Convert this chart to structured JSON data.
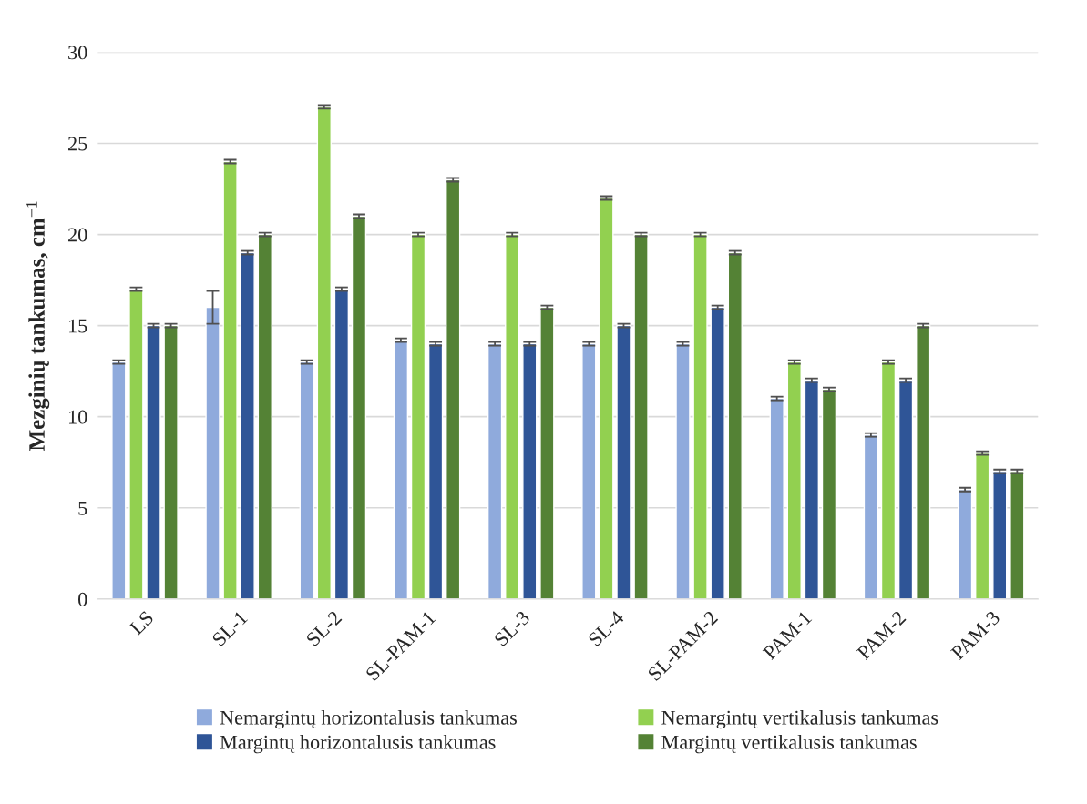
{
  "chart_data": {
    "type": "bar",
    "ylabel": "Mezginių tankumas, cm$^{−1}$",
    "categories": [
      "LS",
      "SL-1",
      "SL-2",
      "SL-PAM-1",
      "SL-3",
      "SL-4",
      "SL-PAM-2",
      "PAM-1",
      "PAM-2",
      "PAM-3"
    ],
    "series": [
      {
        "name": "Nemargintų horizontalusis tankumas",
        "color": "#8faadc",
        "values": [
          13,
          16,
          13,
          14.2,
          14,
          14,
          14,
          11,
          9,
          6
        ],
        "errors": [
          0.1,
          0.9,
          0.1,
          0.1,
          0.1,
          0.1,
          0.1,
          0.1,
          0.1,
          0.1
        ]
      },
      {
        "name": "Nemargintų vertikalusis tankumas",
        "color": "#92d050",
        "values": [
          17,
          24,
          27,
          20,
          20,
          22,
          20,
          13,
          13,
          8
        ],
        "errors": [
          0.1,
          0.1,
          0.1,
          0.1,
          0.1,
          0.1,
          0.1,
          0.1,
          0.1,
          0.1
        ]
      },
      {
        "name": "Margintų horizontalusis tankumas",
        "color": "#2f5597",
        "values": [
          15,
          19,
          17,
          14,
          14,
          15,
          16,
          12,
          12,
          7
        ],
        "errors": [
          0.1,
          0.1,
          0.1,
          0.1,
          0.1,
          0.1,
          0.1,
          0.1,
          0.1,
          0.1
        ]
      },
      {
        "name": "Margintų vertikalusis tankumas",
        "color": "#548235",
        "values": [
          15,
          20,
          21,
          23,
          16,
          20,
          19,
          11.5,
          15,
          7
        ],
        "errors": [
          0.1,
          0.1,
          0.1,
          0.1,
          0.1,
          0.1,
          0.1,
          0.1,
          0.1,
          0.1
        ]
      }
    ],
    "ylim": [
      0,
      30
    ],
    "yticks": [
      0,
      5,
      10,
      15,
      20,
      25,
      30
    ],
    "grid": "y",
    "legend": "bottom"
  }
}
